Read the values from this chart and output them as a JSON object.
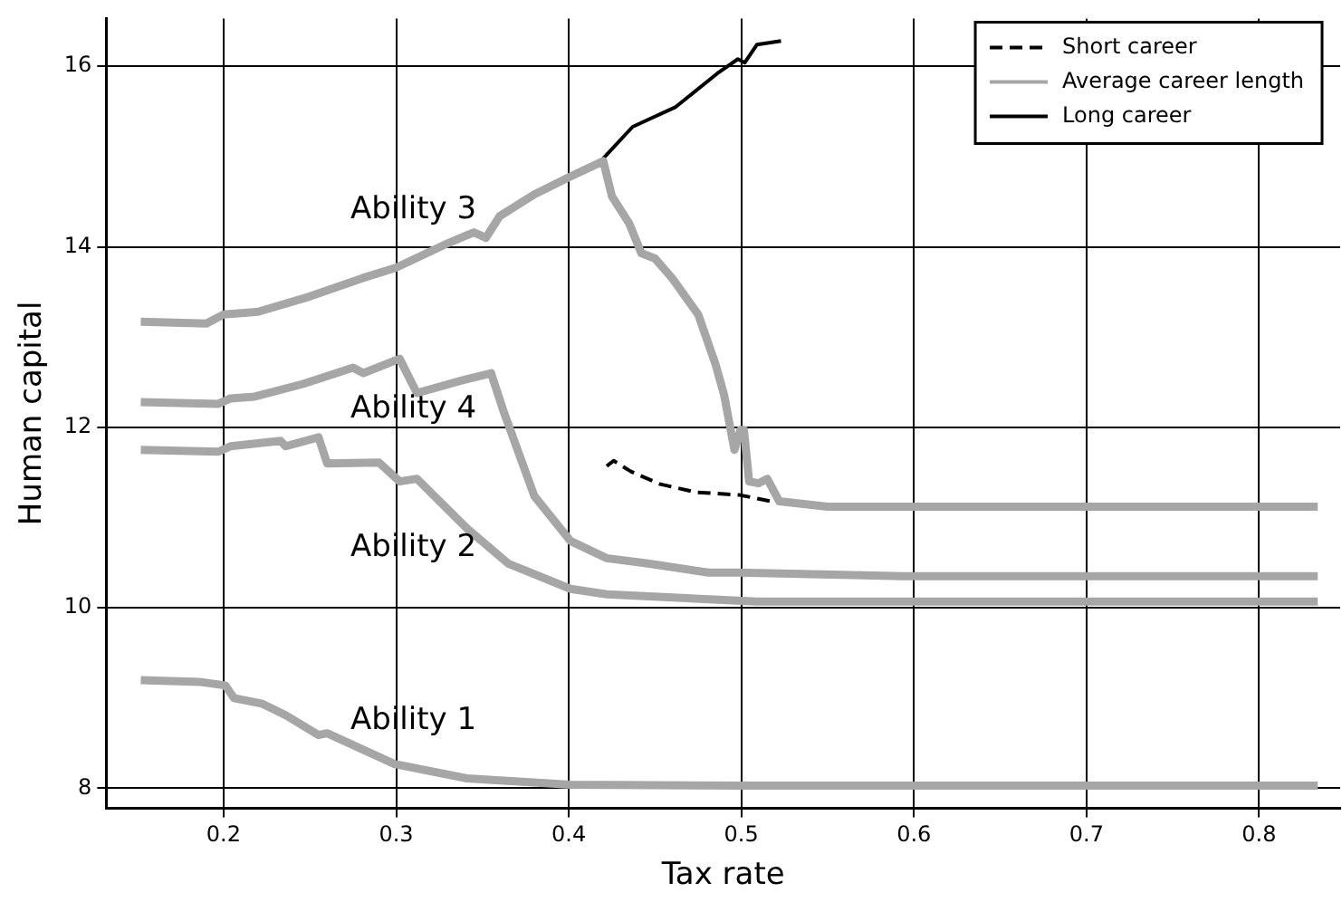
{
  "chart_data": {
    "type": "line",
    "xlabel": "Tax rate",
    "ylabel": "Human capital",
    "xlim": [
      0.132,
      0.847
    ],
    "ylim": [
      7.78,
      16.53
    ],
    "xticks": [
      0.2,
      0.3,
      0.4,
      0.5,
      0.6,
      0.7,
      0.8
    ],
    "yticks": [
      8,
      10,
      12,
      14,
      16
    ],
    "grid": true,
    "legend": "top right",
    "marker": "none",
    "series": [
      {
        "name": "Short career",
        "color": "#000000",
        "line_style": "dashed",
        "x": [
          0.422,
          0.426,
          0.436,
          0.453,
          0.474,
          0.499,
          0.52
        ],
        "values": [
          11.57,
          11.63,
          11.51,
          11.37,
          11.28,
          11.25,
          11.17
        ]
      },
      {
        "name": "Average career length",
        "color": "#a6a6a6",
        "x": [
          0.152,
          0.19,
          0.2,
          0.22,
          0.25,
          0.28,
          0.3,
          0.33,
          0.345,
          0.352,
          0.36,
          0.38,
          0.4,
          0.42,
          0.425,
          0.435,
          0.442,
          0.45,
          0.46,
          0.475,
          0.485,
          0.49,
          0.496,
          0.4995,
          0.5015,
          0.5045,
          0.51,
          0.515,
          0.522,
          0.55,
          0.6,
          0.834
        ],
        "values": [
          13.17,
          13.15,
          13.25,
          13.28,
          13.45,
          13.65,
          13.77,
          14.04,
          14.16,
          14.1,
          14.34,
          14.58,
          14.77,
          14.95,
          14.56,
          14.26,
          13.93,
          13.87,
          13.65,
          13.25,
          12.7,
          12.36,
          11.75,
          11.97,
          11.97,
          11.4,
          11.38,
          11.43,
          11.18,
          11.12,
          11.12,
          11.12
        ]
      },
      {
        "name": "Long career",
        "color": "#000000",
        "line_style": "solid",
        "x": [
          0.42,
          0.437,
          0.462,
          0.486,
          0.498,
          0.502,
          0.509,
          0.523
        ],
        "values": [
          14.98,
          15.33,
          15.55,
          15.92,
          16.08,
          16.04,
          16.24,
          16.28
        ]
      },
      {
        "color": "#a6a6a6",
        "x": [
          0.152,
          0.197,
          0.204,
          0.218,
          0.246,
          0.275,
          0.281,
          0.302,
          0.312,
          0.338,
          0.355,
          0.362,
          0.38,
          0.401,
          0.422,
          0.446,
          0.481,
          0.499,
          0.594,
          0.834
        ],
        "values": [
          12.28,
          12.26,
          12.32,
          12.34,
          12.48,
          12.66,
          12.6,
          12.76,
          12.38,
          12.52,
          12.6,
          12.19,
          11.24,
          10.74,
          10.55,
          10.49,
          10.39,
          10.39,
          10.35,
          10.35
        ]
      },
      {
        "color": "#a6a6a6",
        "x": [
          0.152,
          0.197,
          0.204,
          0.233,
          0.236,
          0.255,
          0.26,
          0.29,
          0.302,
          0.312,
          0.341,
          0.365,
          0.401,
          0.422,
          0.509,
          0.834
        ],
        "values": [
          11.75,
          11.73,
          11.79,
          11.85,
          11.79,
          11.89,
          11.6,
          11.61,
          11.4,
          11.43,
          10.88,
          10.49,
          10.21,
          10.15,
          10.07,
          10.07
        ]
      },
      {
        "color": "#a6a6a6",
        "x": [
          0.152,
          0.186,
          0.201,
          0.206,
          0.222,
          0.236,
          0.255,
          0.26,
          0.299,
          0.341,
          0.401,
          0.5,
          0.834
        ],
        "values": [
          9.2,
          9.18,
          9.14,
          9.0,
          8.94,
          8.81,
          8.59,
          8.61,
          8.27,
          8.11,
          8.04,
          8.03,
          8.03
        ]
      }
    ],
    "annotations": [
      "Ability 3",
      "Ability 4",
      "Ability 2",
      "Ability 1"
    ]
  }
}
